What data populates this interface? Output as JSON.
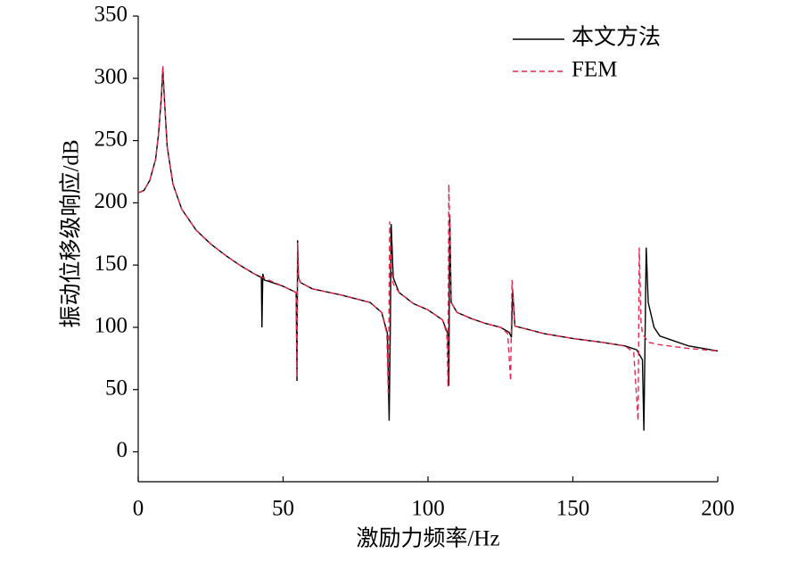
{
  "chart_data": {
    "type": "line",
    "xlabel": "激励力频率/Hz",
    "ylabel": "振动位移级响应/dB",
    "xlim": [
      0,
      200
    ],
    "xticks": [
      0,
      50,
      100,
      150,
      200
    ],
    "ylim": [
      -24,
      350
    ],
    "yticks": [
      0,
      50,
      100,
      150,
      200,
      250,
      300,
      350
    ],
    "grid": false,
    "legend": "upper right",
    "series": [
      {
        "name": "本文方法",
        "color": "#000000",
        "dash": "solid",
        "x": [
          0,
          2,
          4,
          6,
          7,
          8,
          8.5,
          9,
          10,
          12,
          15,
          20,
          25,
          30,
          35,
          40,
          42.5,
          42.7,
          43,
          43.5,
          45,
          50,
          54.5,
          54.8,
          55,
          55.3,
          56,
          60,
          70,
          80,
          84,
          86,
          86.6,
          87,
          87.3,
          88,
          90,
          95,
          100,
          105,
          106.8,
          107.2,
          107.5,
          108,
          110,
          115,
          120,
          125,
          128,
          128.8,
          129.2,
          130,
          135,
          140,
          150,
          160,
          168,
          172,
          174,
          174.5,
          175.3,
          176,
          178,
          180,
          190,
          200
        ],
        "values": [
          208,
          210,
          218,
          235,
          255,
          285,
          308,
          285,
          245,
          215,
          195,
          178,
          167,
          158,
          150,
          143,
          140,
          100,
          143,
          138,
          137,
          133,
          128,
          57,
          170,
          140,
          136,
          131,
          126,
          120,
          112,
          95,
          25,
          100,
          183,
          140,
          128,
          119,
          114,
          106,
          95,
          53,
          190,
          120,
          112,
          107,
          103,
          100,
          96,
          92,
          130,
          101,
          98,
          95,
          91,
          88,
          85,
          82,
          74,
          17,
          164,
          120,
          100,
          93,
          85,
          81
        ]
      },
      {
        "name": "FEM",
        "color": "#e8264b",
        "dash": "dashed",
        "x": [
          0,
          2,
          4,
          6,
          7,
          8,
          8.5,
          9,
          10,
          12,
          15,
          20,
          25,
          30,
          35,
          40,
          50,
          54.5,
          54.8,
          55,
          55.3,
          56,
          60,
          70,
          80,
          84,
          85.8,
          86.3,
          86.8,
          87.3,
          88,
          90,
          95,
          100,
          105,
          106.5,
          106.9,
          107.2,
          108,
          110,
          115,
          120,
          125,
          127.5,
          128.5,
          129,
          130,
          135,
          140,
          150,
          160,
          168,
          171,
          172.5,
          172.9,
          173.5,
          174,
          176,
          180,
          190,
          200
        ],
        "values": [
          208,
          210,
          218,
          235,
          255,
          285,
          310,
          285,
          245,
          215,
          195,
          178,
          167,
          158,
          150,
          143,
          133,
          128,
          60,
          168,
          140,
          136,
          131,
          126,
          120,
          112,
          95,
          45,
          185,
          150,
          135,
          128,
          119,
          114,
          106,
          95,
          52,
          215,
          120,
          112,
          107,
          103,
          100,
          95,
          57,
          138,
          101,
          98,
          95,
          91,
          88,
          85,
          80,
          25,
          164,
          105,
          95,
          88,
          86,
          83,
          81
        ]
      }
    ]
  }
}
